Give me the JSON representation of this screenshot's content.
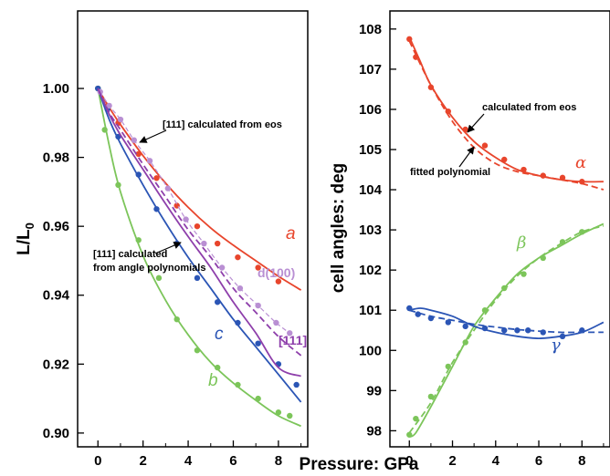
{
  "chart_data": [
    {
      "type": "line",
      "panel": "left",
      "ylabel": "L/L",
      "ylabel_sub": "0",
      "xlim": [
        -0.9,
        9.3
      ],
      "ylim": [
        0.896,
        1.0225
      ],
      "xticks": [
        "0",
        "2",
        "4",
        "6",
        "8"
      ],
      "xtick_values": [
        0,
        2,
        4,
        6,
        8
      ],
      "yticks": [
        "1.00",
        "0.98",
        "0.96",
        "0.94",
        "0.92",
        "0.90"
      ],
      "ytick_values": [
        1.0,
        0.98,
        0.96,
        0.94,
        0.92,
        0.9
      ],
      "series": [
        {
          "name": "a",
          "color": "#e8452c",
          "points_x": [
            0,
            0.42,
            0.9,
            1.8,
            2.6,
            3.5,
            4.4,
            5.3,
            6.2,
            7.1,
            8.0
          ],
          "points_y": [
            1.0,
            0.995,
            0.99,
            0.981,
            0.974,
            0.966,
            0.96,
            0.955,
            0.951,
            0.948,
            0.944
          ],
          "curve_x": [
            0,
            0.5,
            1,
            2,
            3,
            4,
            5,
            6,
            7,
            8,
            9
          ],
          "curve_y": [
            1.0,
            0.9945,
            0.9895,
            0.9805,
            0.9725,
            0.9655,
            0.9595,
            0.9545,
            0.95,
            0.9455,
            0.9415
          ]
        },
        {
          "name": "b",
          "color": "#7cc55a",
          "points_x": [
            0,
            0.3,
            0.9,
            1.8,
            2.7,
            3.5,
            4.4,
            5.3,
            6.2,
            7.1,
            8.0,
            8.5
          ],
          "points_y": [
            1.0,
            0.988,
            0.972,
            0.956,
            0.945,
            0.933,
            0.924,
            0.919,
            0.914,
            0.91,
            0.906,
            0.905
          ],
          "curve_x": [
            0,
            0.5,
            1,
            2,
            3,
            4,
            5,
            6,
            7,
            8,
            9
          ],
          "curve_y": [
            1.0,
            0.9835,
            0.97,
            0.9515,
            0.9385,
            0.9285,
            0.9205,
            0.9145,
            0.9095,
            0.905,
            0.902
          ]
        },
        {
          "name": "c",
          "color": "#2b55b5",
          "points_x": [
            0,
            0.42,
            0.9,
            1.8,
            2.6,
            3.5,
            4.4,
            5.3,
            6.2,
            7.1,
            8.0,
            8.8
          ],
          "points_y": [
            1.0,
            0.994,
            0.986,
            0.975,
            0.965,
            0.955,
            0.945,
            0.938,
            0.932,
            0.926,
            0.92,
            0.914
          ],
          "curve_x": [
            0,
            0.5,
            1,
            2,
            3,
            4,
            5,
            6,
            7,
            8,
            9
          ],
          "curve_y": [
            1.0,
            0.991,
            0.984,
            0.972,
            0.961,
            0.951,
            0.942,
            0.933,
            0.925,
            0.917,
            0.909
          ]
        },
        {
          "name": "d(100)",
          "color": "#b98fd3",
          "points_x": [
            0.1,
            0.5,
            1.0,
            1.6,
            2.3,
            3.1,
            3.9,
            4.7,
            5.5,
            6.3,
            7.1,
            7.9,
            8.5
          ],
          "points_y": [
            0.999,
            0.995,
            0.991,
            0.985,
            0.979,
            0.971,
            0.962,
            0.955,
            0.948,
            0.942,
            0.937,
            0.932,
            0.929
          ]
        },
        {
          "name": "[111]",
          "color": "#8e3fab",
          "curve_x": [
            0,
            0.5,
            1,
            2,
            3,
            4,
            5,
            6,
            7,
            8,
            9
          ],
          "curve_y": [
            1.0,
            0.9925,
            0.9865,
            0.9765,
            0.9665,
            0.957,
            0.948,
            0.938,
            0.929,
            0.919,
            0.9165
          ],
          "dashed_x": [
            0,
            0.5,
            1,
            2,
            3,
            4,
            5,
            6,
            7,
            8,
            9
          ],
          "dashed_y": [
            1.0,
            0.993,
            0.988,
            0.978,
            0.9685,
            0.959,
            0.951,
            0.942,
            0.935,
            0.928,
            0.9225
          ]
        }
      ],
      "labels": {
        "a": "a",
        "b": "b",
        "c": "c",
        "d100": "d(100)",
        "l111": "[111]"
      },
      "annotations": {
        "eos": "[111] calculated from eos",
        "poly_line1": "[111] calculated",
        "poly_line2": "from angle polynomials"
      }
    },
    {
      "type": "line",
      "panel": "right",
      "ylabel": "cell angles: deg",
      "xlim": [
        -0.9,
        9.3
      ],
      "ylim": [
        97.6,
        108.45
      ],
      "xticks": [
        "0",
        "2",
        "4",
        "6",
        "8"
      ],
      "xtick_values": [
        0,
        2,
        4,
        6,
        8
      ],
      "yticks": [
        "108",
        "107",
        "106",
        "105",
        "104",
        "103",
        "102",
        "101",
        "100",
        "99",
        "98"
      ],
      "ytick_values": [
        108,
        107,
        106,
        105,
        104,
        103,
        102,
        101,
        100,
        99,
        98
      ],
      "series": [
        {
          "name": "α",
          "color": "#e8452c",
          "points_x": [
            0,
            0.3,
            1.0,
            1.8,
            2.6,
            3.5,
            4.4,
            5.3,
            6.2,
            7.1,
            8.0
          ],
          "points_y": [
            107.75,
            107.3,
            106.55,
            105.95,
            105.5,
            105.1,
            104.75,
            104.5,
            104.35,
            104.3,
            104.2
          ],
          "curve_x": [
            0,
            0.5,
            1,
            2,
            3,
            4,
            5,
            6,
            7,
            8,
            9
          ],
          "curve_y": [
            107.8,
            107.2,
            106.6,
            105.8,
            105.2,
            104.8,
            104.5,
            104.35,
            104.25,
            104.2,
            104.2
          ],
          "dashed_x": [
            0,
            1,
            2,
            3,
            4,
            5,
            6,
            7,
            8,
            9
          ],
          "dashed_y": [
            107.7,
            106.6,
            105.7,
            105.05,
            104.65,
            104.45,
            104.35,
            104.25,
            104.15,
            104.0
          ]
        },
        {
          "name": "β",
          "color": "#7cc55a",
          "points_x": [
            0,
            0.3,
            1.0,
            1.8,
            2.6,
            3.5,
            4.4,
            5.3,
            6.2,
            7.1,
            8.0
          ],
          "points_y": [
            97.9,
            98.3,
            98.85,
            99.6,
            100.2,
            101.0,
            101.55,
            101.9,
            102.3,
            102.7,
            102.95
          ],
          "curve_x": [
            0,
            0.3,
            1,
            2,
            3,
            4,
            5,
            6,
            7,
            8,
            9
          ],
          "curve_y": [
            97.85,
            97.95,
            98.6,
            99.6,
            100.6,
            101.3,
            101.9,
            102.3,
            102.6,
            102.9,
            103.15
          ],
          "dashed_x": [
            0,
            1,
            2,
            3,
            4,
            5,
            6,
            7,
            8,
            9
          ],
          "dashed_y": [
            97.95,
            98.7,
            99.7,
            100.5,
            101.25,
            101.85,
            102.3,
            102.65,
            102.95,
            103.1
          ]
        },
        {
          "name": "γ",
          "color": "#2b55b5",
          "points_x": [
            0,
            0.4,
            1.0,
            1.8,
            2.6,
            3.5,
            4.4,
            5.0,
            5.5,
            6.2,
            7.1,
            8.0
          ],
          "points_y": [
            101.05,
            100.9,
            100.8,
            100.7,
            100.6,
            100.55,
            100.5,
            100.5,
            100.5,
            100.45,
            100.35,
            100.5
          ],
          "curve_x": [
            0,
            0.5,
            1,
            2,
            3,
            4,
            5,
            6,
            7,
            8,
            9
          ],
          "curve_y": [
            101.0,
            101.05,
            101.0,
            100.85,
            100.6,
            100.45,
            100.35,
            100.3,
            100.35,
            100.45,
            100.7
          ],
          "dashed_x": [
            0,
            1,
            2,
            3,
            4,
            5,
            6,
            7,
            8,
            9
          ],
          "dashed_y": [
            101.0,
            100.85,
            100.75,
            100.65,
            100.58,
            100.52,
            100.48,
            100.45,
            100.45,
            100.45
          ]
        }
      ],
      "labels": {
        "alpha": "α",
        "beta": "β",
        "gamma": "γ"
      },
      "annotations": {
        "eos": "calculated from eos",
        "fitted": "fitted polynomial"
      }
    }
  ],
  "xlabel": "Pressure: GPa"
}
